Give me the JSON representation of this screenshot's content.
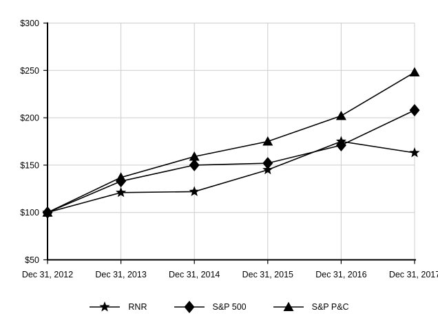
{
  "page": {
    "background": "#ffffff"
  },
  "chart_data": {
    "type": "line",
    "title": "",
    "categories": [
      "Dec 31, 2012",
      "Dec 31, 2013",
      "Dec 31, 2014",
      "Dec 31, 2015",
      "Dec 31, 2016",
      "Dec 31, 2017"
    ],
    "series": [
      {
        "name": "RNR",
        "marker": "star",
        "color": "#000000",
        "values": [
          100,
          121,
          122,
          145,
          175,
          163
        ]
      },
      {
        "name": "S&P 500",
        "marker": "diamond",
        "color": "#000000",
        "values": [
          100,
          133,
          150,
          152,
          171,
          208
        ]
      },
      {
        "name": "S&P P&C",
        "marker": "triangle",
        "color": "#000000",
        "values": [
          100,
          137,
          159,
          175,
          202,
          248
        ]
      }
    ],
    "ylim": [
      50,
      300
    ],
    "yticks": [
      50,
      100,
      150,
      200,
      250,
      300
    ],
    "ytick_labels": [
      "$50",
      "$100",
      "$150",
      "$200",
      "$250",
      "$300"
    ],
    "xlabel": "",
    "ylabel": "",
    "grid": true,
    "gridline_color": "#cccccc",
    "axis_color": "#000000",
    "legend_position": "bottom"
  }
}
